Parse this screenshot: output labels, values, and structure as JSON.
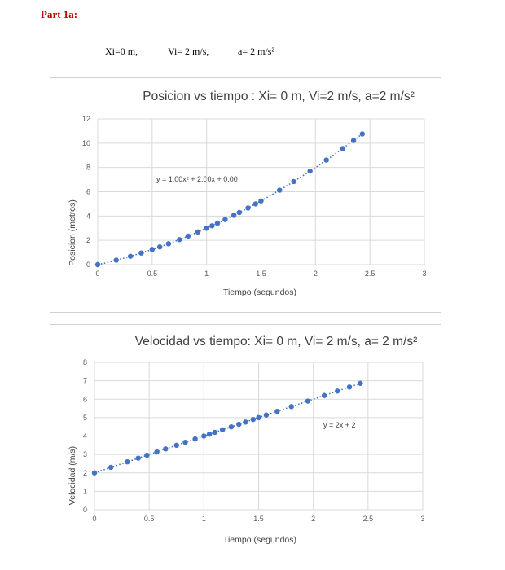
{
  "header": {
    "part_label": "Part 1a:",
    "xi": "Xi=0 m,",
    "vi": "Vi= 2 m/s,",
    "a": "a= 2 m/s²"
  },
  "chart_data": [
    {
      "type": "scatter",
      "title": "Posicion vs tiempo : Xi= 0 m, Vi=2 m/s, a=2 m/s²",
      "xlabel": "Tiempo (segundos)",
      "ylabel": "Posicion (metros)",
      "xlim": [
        0,
        3
      ],
      "ylim": [
        0,
        12
      ],
      "x_ticks": [
        0,
        0.5,
        1,
        1.5,
        2,
        2.5,
        3
      ],
      "x_tick_labels": [
        "0",
        "0.5",
        "1",
        "1.5",
        "2",
        "2.5",
        "3"
      ],
      "y_ticks": [
        0,
        2,
        4,
        6,
        8,
        10,
        12
      ],
      "y_tick_labels": [
        "0",
        "2",
        "4",
        "6",
        "8",
        "10",
        "12"
      ],
      "grid": true,
      "trendline": {
        "type": "polynomial",
        "a": 1.0,
        "b": 2.0,
        "c": 0.0,
        "label": "y = 1.00x² + 2.00x + 0.00"
      },
      "points_x": [
        0,
        0.17,
        0.3,
        0.4,
        0.5,
        0.57,
        0.65,
        0.75,
        0.83,
        0.92,
        1.0,
        1.05,
        1.1,
        1.17,
        1.25,
        1.3,
        1.38,
        1.45,
        1.5,
        1.67,
        1.8,
        1.95,
        2.1,
        2.25,
        2.35,
        2.43
      ],
      "points_y": [
        0.0,
        0.37,
        0.69,
        0.96,
        1.25,
        1.46,
        1.72,
        2.06,
        2.35,
        2.69,
        3.0,
        3.2,
        3.41,
        3.71,
        4.06,
        4.29,
        4.66,
        5.0,
        5.25,
        6.13,
        6.84,
        7.7,
        8.61,
        9.56,
        10.22,
        10.76
      ],
      "color": "#4472c4"
    },
    {
      "type": "scatter",
      "title": "Velocidad vs tiempo: Xi= 0 m, Vi= 2 m/s, a= 2 m/s²",
      "xlabel": "Tiempo (segundos)",
      "ylabel": "Velocidad (m/s)",
      "xlim": [
        0,
        3
      ],
      "ylim": [
        0,
        8
      ],
      "x_ticks": [
        0,
        0.5,
        1,
        1.5,
        2,
        2.5,
        3
      ],
      "x_tick_labels": [
        "0",
        "0.5",
        "1",
        "1.5",
        "2",
        "2.5",
        "3"
      ],
      "y_ticks": [
        0,
        1,
        2,
        3,
        4,
        5,
        6,
        7,
        8
      ],
      "y_tick_labels": [
        "0",
        "1",
        "2",
        "3",
        "4",
        "5",
        "6",
        "7",
        "8"
      ],
      "grid": true,
      "trendline": {
        "type": "linear",
        "m": 2,
        "b": 2,
        "label": "y = 2x + 2"
      },
      "points_x": [
        0,
        0.15,
        0.3,
        0.4,
        0.48,
        0.57,
        0.65,
        0.75,
        0.83,
        0.92,
        1.0,
        1.05,
        1.1,
        1.17,
        1.25,
        1.32,
        1.38,
        1.45,
        1.5,
        1.57,
        1.67,
        1.8,
        1.95,
        2.1,
        2.22,
        2.33,
        2.43
      ],
      "points_y": [
        2.0,
        2.3,
        2.6,
        2.8,
        2.96,
        3.14,
        3.3,
        3.5,
        3.66,
        3.84,
        4.0,
        4.1,
        4.2,
        4.34,
        4.5,
        4.64,
        4.76,
        4.9,
        5.0,
        5.14,
        5.34,
        5.6,
        5.9,
        6.2,
        6.44,
        6.66,
        6.86
      ],
      "color": "#4472c4"
    }
  ]
}
